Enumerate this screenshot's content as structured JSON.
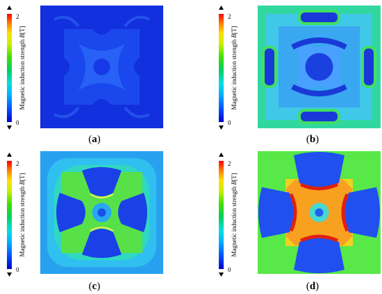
{
  "colorbar": {
    "label_main": "Magnetic induction strength",
    "label_symbol": "B",
    "label_unit": "[T]",
    "max_label": "2",
    "min_label": "0",
    "stops": [
      "#0000cc",
      "#0050ff",
      "#00b0ff",
      "#00e0e0",
      "#00d060",
      "#40e000",
      "#c8f000",
      "#ffe000",
      "#ff8000",
      "#ff0000"
    ]
  },
  "panels": [
    {
      "id": "a",
      "caption_open": "(",
      "caption_letter": "a",
      "caption_close": ")",
      "field_level": 0.1
    },
    {
      "id": "b",
      "caption_open": "(",
      "caption_letter": "b",
      "caption_close": ")",
      "field_level": 0.45
    },
    {
      "id": "c",
      "caption_open": "(",
      "caption_letter": "c",
      "caption_close": ")",
      "field_level": 0.6
    },
    {
      "id": "d",
      "caption_open": "(",
      "caption_letter": "d",
      "caption_close": ")",
      "field_level": 0.85
    }
  ]
}
